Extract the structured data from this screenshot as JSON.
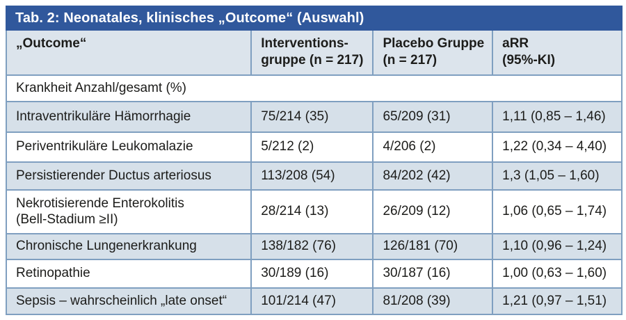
{
  "title_bar": {
    "text": "Tab. 2: Neonatales, klinisches „Outcome“ (Auswahl)"
  },
  "table": {
    "headers": {
      "outcome": "„Outcome“",
      "intervention": "Interventions-\ngruppe (n = 217)",
      "placebo": "Placebo Gruppe\n(n = 217)",
      "arr": "aRR\n(95%-KI)"
    },
    "section_row": "Krankheit Anzahl/gesamt (%)",
    "rows": [
      {
        "outcome": "Intraventrikuläre Hämorrhagie",
        "intervention": "75/214 (35)",
        "placebo": "65/209 (31)",
        "arr": "1,11 (0,85 – 1,46)"
      },
      {
        "outcome": "Periventrikuläre Leukomalazie",
        "intervention": "5/212 (2)",
        "placebo": "4/206 (2)",
        "arr": "1,22 (0,34 – 4,40)"
      },
      {
        "outcome": "Persistierender Ductus arteriosus",
        "intervention": "113/208 (54)",
        "placebo": "84/202 (42)",
        "arr": "1,3 (1,05 – 1,60)"
      },
      {
        "outcome": "Nekrotisierende Enterokolitis\n(Bell-Stadium ≥II)",
        "intervention": "28/214 (13)",
        "placebo": "26/209 (12)",
        "arr": "1,06 (0,65 – 1,74)"
      },
      {
        "outcome": "Chronische Lungenerkrankung",
        "intervention": "138/182 (76)",
        "placebo": "126/181 (70)",
        "arr": "1,10 (0,96 – 1,24)"
      },
      {
        "outcome": "Retinopathie",
        "intervention": "30/189 (16)",
        "placebo": "30/187 (16)",
        "arr": "1,00 (0,63 – 1,60)"
      },
      {
        "outcome": "Sepsis – wahrscheinlich „late onset“",
        "intervention": "101/214 (47)",
        "placebo": "81/208 (39)",
        "arr": "1,21 (0,97 – 1,51)"
      }
    ]
  },
  "colors": {
    "title_bar_bg": "#30589C",
    "title_text": "#FFFFFF",
    "header_bg": "#DCE4EC",
    "row_alt_bg": "#D6E0E9",
    "row_bg": "#FFFFFF",
    "border": "#7F9FC0",
    "text": "#1C1C1A"
  }
}
